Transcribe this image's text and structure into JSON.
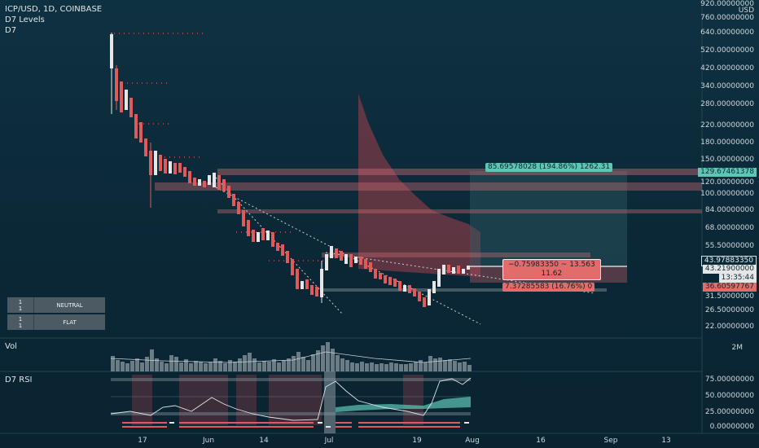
{
  "legend": {
    "symbol_line": "ICP/USD, 1D, COINBASE",
    "indicator1": "D7 Levels",
    "indicator2": "D7"
  },
  "price_axis": {
    "currency": "USD",
    "labels": [
      {
        "text": "920.00000000"
      },
      {
        "text": "760.00000000"
      },
      {
        "text": "640.00000000"
      },
      {
        "text": "520.00000000"
      },
      {
        "text": "420.00000000"
      },
      {
        "text": "340.00000000"
      },
      {
        "text": "280.00000000"
      },
      {
        "text": "220.00000000"
      },
      {
        "text": "180.00000000"
      },
      {
        "text": "150.00000000"
      },
      {
        "text": "120.00000000"
      },
      {
        "text": "100.00000000"
      },
      {
        "text": "84.00000000"
      },
      {
        "text": "68.00000000"
      },
      {
        "text": "55.50000000"
      },
      {
        "text": "31.50000000"
      },
      {
        "text": "26.50000000"
      },
      {
        "text": "22.00000000"
      }
    ],
    "tags": {
      "target": "129.67461378",
      "price1": "43.97883350",
      "price2": "43.21900000",
      "countdown": "13:35:44",
      "stop": "36.60597767"
    }
  },
  "volume_pane": {
    "label": "Vol",
    "axis_label": "2M"
  },
  "rsi_pane": {
    "label": "D7 RSI",
    "axis_labels": [
      {
        "text": "75.00000000"
      },
      {
        "text": "50.00000000"
      },
      {
        "text": "25.00000000"
      },
      {
        "text": "0.00000000"
      }
    ]
  },
  "time_axis": [
    {
      "text": "17"
    },
    {
      "text": "Jun"
    },
    {
      "text": "14"
    },
    {
      "text": "Jul"
    },
    {
      "text": "19"
    },
    {
      "text": "Aug"
    },
    {
      "text": "16"
    },
    {
      "text": "Sep"
    },
    {
      "text": "13"
    }
  ],
  "trade_boxes": {
    "target_label": "85.69578028 (194.86%) 1262.31",
    "entry_label_line1": "−0.75983350 ~ 13.563",
    "entry_label_line2": "11.62",
    "stop_label": "7.37285583 (16.76%) 0"
  },
  "signal_table": [
    {
      "top": "1",
      "bottom": "1",
      "value": "NEUTRAL"
    },
    {
      "top": "1",
      "bottom": "1",
      "value": "FLAT"
    }
  ],
  "colors": {
    "background": "#0b2a38",
    "up_candle": "#e6e6e6",
    "down_candle": "#e05a5a",
    "target_box": "#5cc7b5",
    "stop_box": "#e36b6b"
  }
}
